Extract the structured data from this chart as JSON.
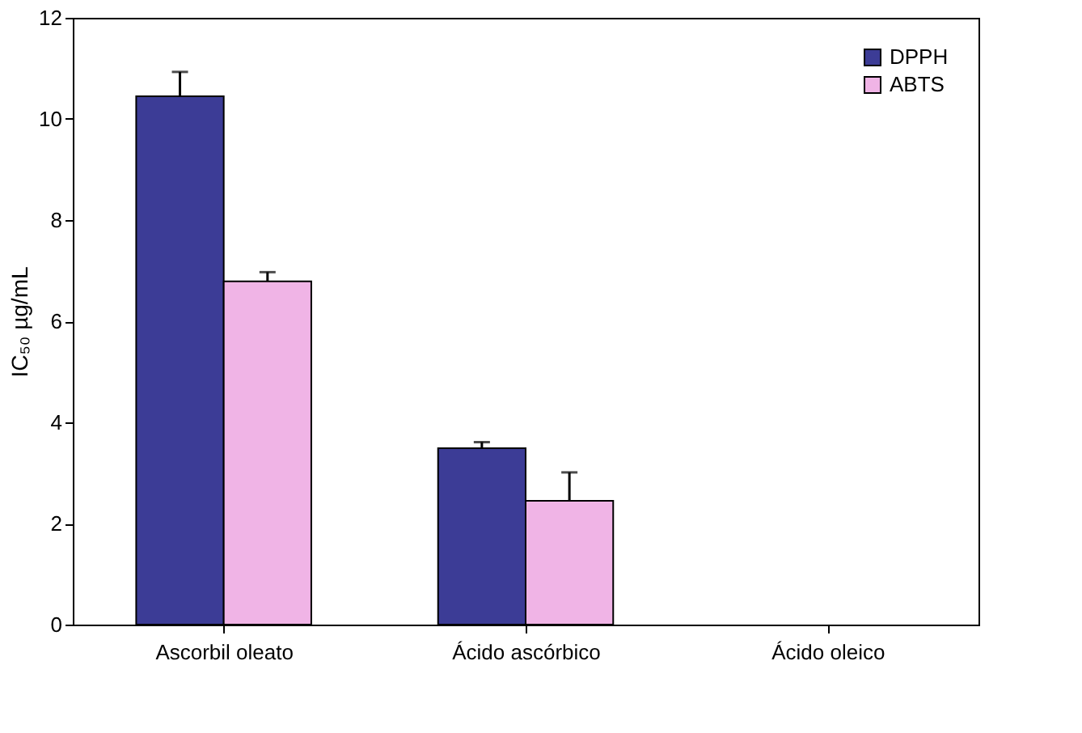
{
  "chart_data": {
    "type": "bar",
    "ylabel": "IC₅₀ µg/mL",
    "categories": [
      "Ascorbil oleato",
      "Ácido ascórbico",
      "Ácido oleico"
    ],
    "series": [
      {
        "name": "DPPH",
        "color": "#3c3c96",
        "values": [
          10.45,
          3.49,
          null
        ],
        "errors": [
          0.48,
          0.12,
          null
        ]
      },
      {
        "name": "ABTS",
        "color": "#f0b4e6",
        "values": [
          6.79,
          2.45,
          null
        ],
        "errors": [
          0.18,
          0.56,
          null
        ]
      }
    ],
    "ylim": [
      0,
      12
    ],
    "yticks": [
      0,
      2,
      4,
      6,
      8,
      10,
      12
    ],
    "grid": false,
    "legend": "top right"
  }
}
